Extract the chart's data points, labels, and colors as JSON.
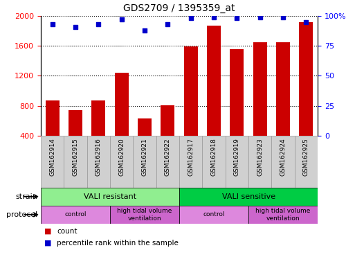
{
  "title": "GDS2709 / 1395359_at",
  "samples": [
    "GSM162914",
    "GSM162915",
    "GSM162916",
    "GSM162920",
    "GSM162921",
    "GSM162922",
    "GSM162917",
    "GSM162918",
    "GSM162919",
    "GSM162923",
    "GSM162924",
    "GSM162925"
  ],
  "counts": [
    870,
    740,
    870,
    1240,
    630,
    810,
    1590,
    1870,
    1560,
    1650,
    1650,
    1920
  ],
  "percentile": [
    93,
    91,
    93,
    97,
    88,
    93,
    98,
    99,
    98,
    99,
    99,
    95
  ],
  "bar_color": "#cc0000",
  "dot_color": "#0000cc",
  "ylim_left": [
    400,
    2000
  ],
  "ylim_right": [
    0,
    100
  ],
  "yticks_left": [
    400,
    800,
    1200,
    1600,
    2000
  ],
  "yticks_right": [
    0,
    25,
    50,
    75,
    100
  ],
  "ytick_right_labels": [
    "0",
    "25",
    "50",
    "75",
    "100%"
  ],
  "strain_groups": [
    {
      "label": "VALI resistant",
      "start": 0,
      "end": 6,
      "color": "#90ee90"
    },
    {
      "label": "VALI sensitive",
      "start": 6,
      "end": 12,
      "color": "#00cc44"
    }
  ],
  "protocol_groups": [
    {
      "label": "control",
      "start": 0,
      "end": 3,
      "color": "#dd88dd"
    },
    {
      "label": "high tidal volume\nventilation",
      "start": 3,
      "end": 6,
      "color": "#cc66cc"
    },
    {
      "label": "control",
      "start": 6,
      "end": 9,
      "color": "#dd88dd"
    },
    {
      "label": "high tidal volume\nventilation",
      "start": 9,
      "end": 12,
      "color": "#cc66cc"
    }
  ],
  "legend_count_label": "count",
  "legend_pct_label": "percentile rank within the sample",
  "bar_bottom": 400,
  "label_box_color": "#d0d0d0",
  "label_box_edge": "#999999"
}
